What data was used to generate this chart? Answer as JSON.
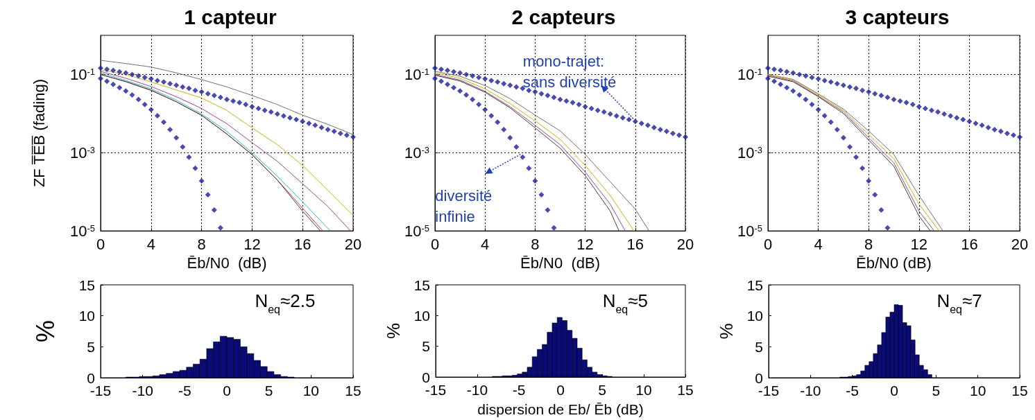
{
  "chart_data": [
    {
      "type": "line",
      "title": "1 capteur",
      "xlabel": "Ēb/N0  (dB)",
      "ylabel": "ZF T̅E̅B̅ (fading)",
      "log": "y",
      "grid": true,
      "xlim": [
        0,
        20
      ],
      "xticks": [
        0,
        4,
        8,
        12,
        16,
        20
      ],
      "ylim": [
        1e-05,
        1
      ],
      "yticks": [
        {
          "value": 1e-05,
          "label": "10$^{-5}$"
        },
        {
          "value": 0.001,
          "label": "10$^{-3}$"
        },
        {
          "value": 0.1,
          "label": "10$^{-1}$"
        }
      ],
      "series": [
        {
          "type": "line",
          "color": "#707070",
          "x": [
            0,
            2,
            4,
            6,
            8,
            10,
            12,
            14,
            16,
            18,
            20
          ],
          "values": [
            0.23,
            0.19,
            0.155,
            0.11,
            0.074,
            0.048,
            0.029,
            0.017,
            0.0091,
            0.0053,
            0.0029
          ]
        },
        {
          "type": "line",
          "color": "#c8b400",
          "x": [
            0,
            2,
            4,
            6,
            8,
            10,
            12,
            14,
            16,
            18,
            20
          ],
          "values": [
            0.13,
            0.1,
            0.064,
            0.04,
            0.025,
            0.012,
            0.0043,
            0.0016,
            0.00047,
            0.00011,
            2.5e-05
          ]
        },
        {
          "type": "line",
          "color": "#a040a0",
          "x": [
            0,
            2,
            4,
            6,
            8,
            10,
            12,
            14,
            16,
            18,
            19.8
          ],
          "values": [
            0.12,
            0.08,
            0.049,
            0.027,
            0.0135,
            0.0055,
            0.0018,
            0.0006,
            0.00016,
            4.2e-05,
            1e-05
          ]
        },
        {
          "type": "line",
          "color": "#20c0c0",
          "x": [
            0,
            2,
            4,
            6,
            8,
            10,
            12,
            14,
            16,
            18.2
          ],
          "values": [
            0.11,
            0.07,
            0.043,
            0.022,
            0.0098,
            0.0035,
            0.001,
            0.00025,
            5.5e-05,
            1e-05
          ]
        },
        {
          "type": "line",
          "color": "#d03030",
          "x": [
            0,
            2,
            4,
            6,
            8,
            10,
            12,
            14,
            16,
            17.6
          ],
          "values": [
            0.1,
            0.066,
            0.04,
            0.02,
            0.0091,
            0.003,
            0.0009,
            0.0002,
            3.8e-05,
            1e-05
          ]
        },
        {
          "type": "line",
          "color": "#404040",
          "x": [
            0,
            2,
            4,
            6,
            8,
            10,
            12,
            14,
            16,
            17.4
          ],
          "values": [
            0.1,
            0.065,
            0.039,
            0.02,
            0.009,
            0.003,
            0.00088,
            0.0002,
            3.2e-05,
            1e-05
          ]
        },
        {
          "type": "scatter",
          "marker": "diamond",
          "color": "#1c1c9c",
          "x": [
            0,
            0.5,
            1,
            1.5,
            2,
            2.5,
            3,
            3.5,
            4,
            4.5,
            5,
            5.5,
            6,
            6.5,
            7,
            7.5,
            8,
            8.5,
            9,
            9.5,
            10,
            10.5,
            11,
            11.5,
            12,
            12.5,
            13,
            13.5,
            14,
            14.5,
            15,
            15.5,
            16,
            16.5,
            17,
            17.5,
            18,
            18.5,
            19,
            19.5,
            20
          ],
          "values": [
            0.146,
            0.136,
            0.127,
            0.117,
            0.109,
            0.1,
            0.092,
            0.084,
            0.077,
            0.07,
            0.064,
            0.058,
            0.053,
            0.048,
            0.044,
            0.039,
            0.036,
            0.032,
            0.029,
            0.026,
            0.023,
            0.021,
            0.019,
            0.017,
            0.015,
            0.0135,
            0.012,
            0.011,
            0.0097,
            0.0087,
            0.0078,
            0.007,
            0.0063,
            0.0056,
            0.005,
            0.0044,
            0.0039,
            0.0035,
            0.0031,
            0.0028,
            0.0025
          ]
        },
        {
          "type": "scatter",
          "marker": "diamond",
          "color": "#1c1c9c",
          "x": [
            0,
            0.5,
            1,
            1.5,
            2,
            2.5,
            3,
            3.5,
            4,
            4.5,
            5,
            5.5,
            6,
            6.5,
            7,
            7.5,
            8,
            8.5,
            9,
            9.5
          ],
          "values": [
            0.079,
            0.067,
            0.056,
            0.046,
            0.038,
            0.03,
            0.023,
            0.017,
            0.0125,
            0.0088,
            0.006,
            0.0039,
            0.0024,
            0.0014,
            0.00077,
            0.0004,
            0.00019,
            8.4e-05,
            3.4e-05,
            1.2e-05
          ]
        }
      ]
    },
    {
      "type": "line",
      "title": "2 capteurs",
      "xlabel": "Ēb/N0  (dB)",
      "log": "y",
      "grid": true,
      "xlim": [
        0,
        20
      ],
      "xticks": [
        0,
        4,
        8,
        12,
        16,
        20
      ],
      "ylim": [
        1e-05,
        1
      ],
      "yticks": [
        {
          "value": 1e-05,
          "label": "10$^{-5}$"
        },
        {
          "value": 0.001,
          "label": "10$^{-3}$"
        },
        {
          "value": 0.1,
          "label": "10$^{-1}$"
        }
      ],
      "annotations": [
        {
          "text": "mono-trajet: sans diversité",
          "x": 16,
          "y": 0.0063
        },
        {
          "text": "diversité infinie",
          "x": 7,
          "y": 0.00077
        }
      ],
      "series": [
        {
          "type": "line",
          "color": "#707070",
          "x": [
            0,
            2,
            4,
            6,
            8,
            10,
            12,
            14,
            16,
            17.1
          ],
          "values": [
            0.12,
            0.09,
            0.052,
            0.024,
            0.0091,
            0.0036,
            0.0009,
            0.00018,
            3.6e-05,
            1e-05
          ]
        },
        {
          "type": "line",
          "color": "#c8b400",
          "x": [
            0,
            2,
            4,
            6,
            8,
            10,
            12,
            14,
            15.9
          ],
          "values": [
            0.11,
            0.08,
            0.043,
            0.018,
            0.0065,
            0.0022,
            0.00047,
            8e-05,
            1e-05
          ]
        },
        {
          "type": "line",
          "color": "#a040a0",
          "x": [
            0,
            2,
            4,
            6,
            8,
            10,
            12,
            14,
            15.2
          ],
          "values": [
            0.1,
            0.072,
            0.037,
            0.015,
            0.005,
            0.0016,
            0.00032,
            4.8e-05,
            1e-05
          ]
        },
        {
          "type": "line",
          "color": "#404040",
          "x": [
            0,
            2,
            4,
            6,
            8,
            10,
            12,
            14,
            14.7
          ],
          "values": [
            0.095,
            0.068,
            0.035,
            0.014,
            0.0043,
            0.0013,
            0.00026,
            3.2e-05,
            1e-05
          ]
        },
        {
          "type": "scatter",
          "marker": "diamond",
          "color": "#1c1c9c",
          "x": [
            0,
            0.5,
            1,
            1.5,
            2,
            2.5,
            3,
            3.5,
            4,
            4.5,
            5,
            5.5,
            6,
            6.5,
            7,
            7.5,
            8,
            8.5,
            9,
            9.5,
            10,
            10.5,
            11,
            11.5,
            12,
            12.5,
            13,
            13.5,
            14,
            14.5,
            15,
            15.5,
            16,
            16.5,
            17,
            17.5,
            18,
            18.5,
            19,
            19.5,
            20
          ],
          "values": [
            0.146,
            0.136,
            0.127,
            0.117,
            0.109,
            0.1,
            0.092,
            0.084,
            0.077,
            0.07,
            0.064,
            0.058,
            0.053,
            0.048,
            0.044,
            0.039,
            0.036,
            0.032,
            0.029,
            0.026,
            0.023,
            0.021,
            0.019,
            0.017,
            0.015,
            0.0135,
            0.012,
            0.011,
            0.0097,
            0.0087,
            0.0078,
            0.007,
            0.0063,
            0.0056,
            0.005,
            0.0044,
            0.0039,
            0.0035,
            0.0031,
            0.0028,
            0.0025
          ]
        },
        {
          "type": "scatter",
          "marker": "diamond",
          "color": "#1c1c9c",
          "x": [
            0,
            0.5,
            1,
            1.5,
            2,
            2.5,
            3,
            3.5,
            4,
            4.5,
            5,
            5.5,
            6,
            6.5,
            7,
            7.5,
            8,
            8.5,
            9,
            9.5
          ],
          "values": [
            0.079,
            0.067,
            0.056,
            0.046,
            0.038,
            0.03,
            0.023,
            0.017,
            0.0125,
            0.0088,
            0.006,
            0.0039,
            0.0024,
            0.0014,
            0.00077,
            0.0004,
            0.00019,
            8.4e-05,
            3.4e-05,
            1.2e-05
          ]
        }
      ]
    },
    {
      "type": "line",
      "title": "3 capteurs",
      "xlabel": "Ēb/N0 (dB)",
      "log": "y",
      "grid": true,
      "xlim": [
        0,
        20
      ],
      "xticks": [
        0,
        4,
        8,
        12,
        16,
        20
      ],
      "ylim": [
        1e-05,
        1
      ],
      "yticks": [
        {
          "value": 1e-05,
          "label": "10$^{-5}$"
        },
        {
          "value": 0.001,
          "label": "10$^{-3}$"
        },
        {
          "value": 0.1,
          "label": "10$^{-1}$"
        }
      ],
      "series": [
        {
          "type": "line",
          "color": "#707070",
          "x": [
            0,
            2,
            4,
            6,
            8,
            10,
            12,
            13.9
          ],
          "values": [
            0.1,
            0.075,
            0.032,
            0.013,
            0.0036,
            0.0009,
            8e-05,
            1e-05
          ]
        },
        {
          "type": "line",
          "color": "#c8b400",
          "x": [
            0,
            2,
            4,
            6,
            8,
            10,
            12,
            13.6
          ],
          "values": [
            0.1,
            0.072,
            0.03,
            0.012,
            0.0029,
            0.0007,
            4.8e-05,
            1e-05
          ]
        },
        {
          "type": "line",
          "color": "#a040a0",
          "x": [
            0,
            2,
            4,
            6,
            8,
            10,
            12,
            13.2
          ],
          "values": [
            0.095,
            0.068,
            0.028,
            0.011,
            0.0024,
            0.00055,
            3.2e-05,
            1e-05
          ]
        },
        {
          "type": "line",
          "color": "#404040",
          "x": [
            0,
            2,
            4,
            6,
            8,
            10,
            12,
            12.9
          ],
          "values": [
            0.09,
            0.065,
            0.027,
            0.01,
            0.0021,
            0.00045,
            2.4e-05,
            1e-05
          ]
        },
        {
          "type": "scatter",
          "marker": "diamond",
          "color": "#1c1c9c",
          "x": [
            0,
            0.5,
            1,
            1.5,
            2,
            2.5,
            3,
            3.5,
            4,
            4.5,
            5,
            5.5,
            6,
            6.5,
            7,
            7.5,
            8,
            8.5,
            9,
            9.5,
            10,
            10.5,
            11,
            11.5,
            12,
            12.5,
            13,
            13.5,
            14,
            14.5,
            15,
            15.5,
            16,
            16.5,
            17,
            17.5,
            18,
            18.5,
            19,
            19.5,
            20
          ],
          "values": [
            0.146,
            0.136,
            0.127,
            0.117,
            0.109,
            0.1,
            0.092,
            0.084,
            0.077,
            0.07,
            0.064,
            0.058,
            0.053,
            0.048,
            0.044,
            0.039,
            0.036,
            0.032,
            0.029,
            0.026,
            0.023,
            0.021,
            0.019,
            0.017,
            0.015,
            0.0135,
            0.012,
            0.011,
            0.0097,
            0.0087,
            0.0078,
            0.007,
            0.0063,
            0.0056,
            0.005,
            0.0044,
            0.0039,
            0.0035,
            0.0031,
            0.0028,
            0.0025
          ]
        },
        {
          "type": "scatter",
          "marker": "diamond",
          "color": "#1c1c9c",
          "x": [
            0,
            0.5,
            1,
            1.5,
            2,
            2.5,
            3,
            3.5,
            4,
            4.5,
            5,
            5.5,
            6,
            6.5,
            7,
            7.5,
            8,
            8.5,
            9,
            9.5
          ],
          "values": [
            0.079,
            0.067,
            0.056,
            0.046,
            0.038,
            0.03,
            0.023,
            0.017,
            0.0125,
            0.0088,
            0.006,
            0.0039,
            0.0024,
            0.0014,
            0.00077,
            0.0004,
            0.00019,
            8.4e-05,
            3.4e-05,
            1.2e-05
          ]
        }
      ]
    },
    {
      "type": "histogram",
      "ylabel": "%",
      "color": "#0a0a78",
      "xlim": [
        -15,
        15
      ],
      "xticks": [
        -15,
        -10,
        -5,
        0,
        5,
        10,
        15
      ],
      "ylim": [
        0,
        15
      ],
      "yticks": [
        0,
        5,
        10,
        15
      ],
      "annotations": [
        "N$_{eq}$≈2.5"
      ],
      "bins": [
        -12,
        -11.2,
        -10.4,
        -9.6,
        -8.8,
        -8,
        -7.2,
        -6.4,
        -5.6,
        -4.8,
        -4,
        -3.2,
        -2.4,
        -1.6,
        -0.8,
        0,
        0.8,
        1.6,
        2.4,
        3.2,
        4,
        4.8,
        5.6,
        6.4,
        7.2,
        8
      ],
      "values": [
        0.1,
        0.1,
        0.2,
        0.2,
        0.3,
        0.5,
        0.7,
        1,
        1.2,
        1.7,
        2.2,
        3,
        4.7,
        5.8,
        6.7,
        6.5,
        6.2,
        5,
        3.9,
        2.8,
        1.8,
        1,
        0.5,
        0.2,
        0.1
      ]
    },
    {
      "type": "histogram",
      "ylabel": "%",
      "xlabel": "dispersion de Eb/ Ēb (dB)",
      "color": "#0a0a78",
      "xlim": [
        -15,
        15
      ],
      "xticks": [
        -15,
        -10,
        -5,
        0,
        5,
        10,
        15
      ],
      "ylim": [
        0,
        15
      ],
      "yticks": [
        0,
        5,
        10,
        15
      ],
      "annotations": [
        "N$_{eq}$≈5"
      ],
      "bins": [
        -8.2,
        -7.6,
        -7,
        -6.4,
        -5.8,
        -5.2,
        -4.6,
        -4,
        -3.4,
        -2.8,
        -2.2,
        -1.6,
        -1,
        -0.4,
        0.2,
        0.8,
        1.4,
        2,
        2.6,
        3.2,
        3.8,
        4.4,
        5,
        5.6,
        6.2
      ],
      "values": [
        0.1,
        0.1,
        0.2,
        0.2,
        0.3,
        0.5,
        0.8,
        1.6,
        3.3,
        4.5,
        5.3,
        7.3,
        8.8,
        9.7,
        9.2,
        7.6,
        6.3,
        4.7,
        2.8,
        1.6,
        0.8,
        0.4,
        0.2,
        0.1
      ]
    },
    {
      "type": "histogram",
      "ylabel": "%",
      "color": "#0a0a78",
      "xlim": [
        -15,
        15
      ],
      "xticks": [
        -15,
        -10,
        -5,
        0,
        5,
        10,
        15
      ],
      "ylim": [
        0,
        15
      ],
      "yticks": [
        0,
        5,
        10,
        15
      ],
      "annotations": [
        "N$_{eq}$≈7"
      ],
      "bins": [
        -6.5,
        -6,
        -5.5,
        -5,
        -4.5,
        -4,
        -3.5,
        -3,
        -2.5,
        -2,
        -1.5,
        -1,
        -0.5,
        0,
        0.5,
        1,
        1.5,
        2,
        2.5,
        3,
        3.5,
        4,
        4.5
      ],
      "values": [
        0.1,
        0.1,
        0.2,
        0.3,
        0.5,
        1.1,
        2,
        2.6,
        3.9,
        5.3,
        7.3,
        9.8,
        10.6,
        11.8,
        11.7,
        8.9,
        8.4,
        6.1,
        3.7,
        2,
        1.3,
        0.5
      ]
    }
  ]
}
